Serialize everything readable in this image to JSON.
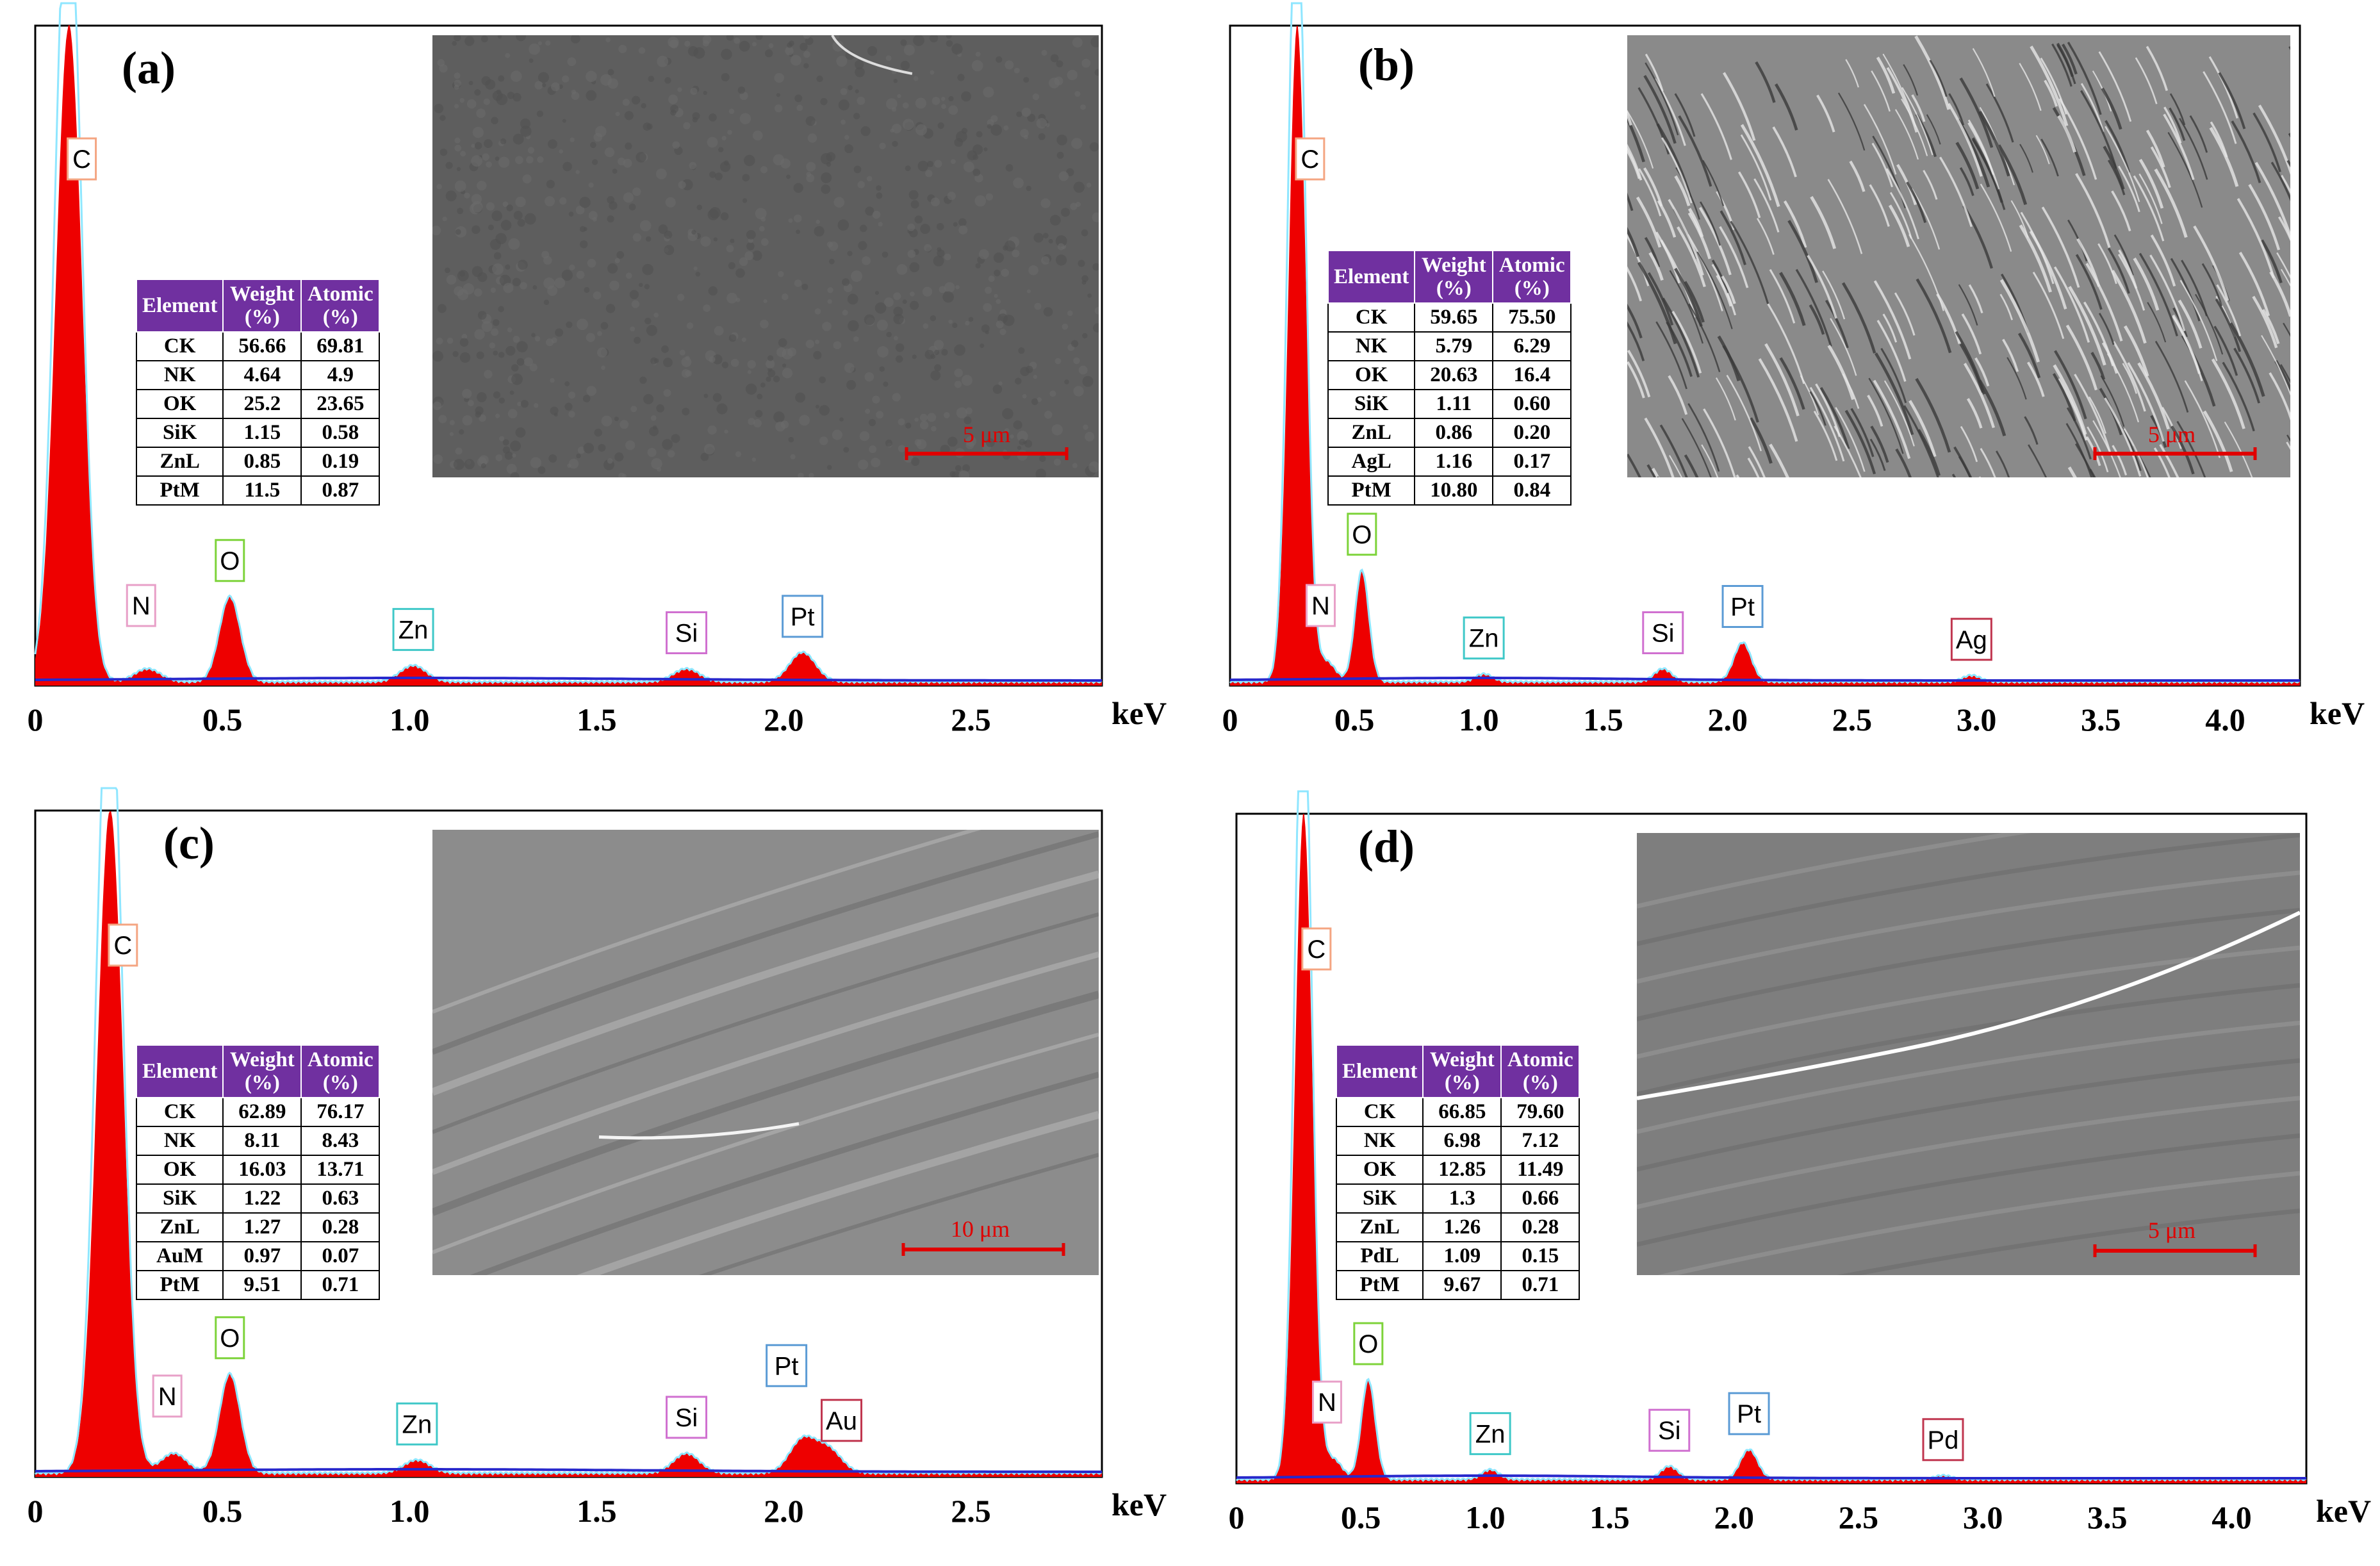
{
  "colors": {
    "spectrum_fill": "#ee0000",
    "spectrum_line": "#8fe6ff",
    "background_line": "#2828cc",
    "table_header": "#7030a0",
    "scalebar": "#e00000"
  },
  "chart_data": [
    {
      "type": "area",
      "panel_label": "(a)",
      "xlabel": "keV",
      "xlim": [
        0,
        2.85
      ],
      "xticks": [
        0,
        0.5,
        1.0,
        1.5,
        2.0,
        2.5
      ],
      "xtick_labels": [
        "0",
        "0.5",
        "1.0",
        "1.5",
        "2.0",
        "2.5"
      ],
      "grid": false,
      "peaks": [
        {
          "element": "C",
          "energy": 0.09,
          "rel_height": 1.0
        },
        {
          "element": "N",
          "energy": 0.3,
          "rel_height": 0.02
        },
        {
          "element": "O",
          "energy": 0.52,
          "rel_height": 0.13
        },
        {
          "element": "Zn",
          "energy": 1.01,
          "rel_height": 0.025
        },
        {
          "element": "Si",
          "energy": 1.74,
          "rel_height": 0.02
        },
        {
          "element": "Pt",
          "energy": 2.05,
          "rel_height": 0.045
        }
      ],
      "peak_labels": [
        {
          "text": "C",
          "color": "#f4a582"
        },
        {
          "text": "N",
          "color": "#e8a0c8"
        },
        {
          "text": "O",
          "color": "#7dd33a"
        },
        {
          "text": "Zn",
          "color": "#3fc8c8"
        },
        {
          "text": "Si",
          "color": "#d070d0"
        },
        {
          "text": "Pt",
          "color": "#5b9bd5"
        }
      ],
      "table": {
        "headers": [
          "Element",
          "Weight (%)",
          "Atomic (%)"
        ],
        "rows": [
          [
            "CK",
            "56.66",
            "69.81"
          ],
          [
            "NK",
            "4.64",
            "4.9"
          ],
          [
            "OK",
            "25.2",
            "23.65"
          ],
          [
            "SiK",
            "1.15",
            "0.58"
          ],
          [
            "ZnL",
            "0.85",
            "0.19"
          ],
          [
            "PtM",
            "11.5",
            "0.87"
          ]
        ]
      },
      "sem": {
        "texture": "smooth",
        "scalebar_label": "5 μm"
      }
    },
    {
      "type": "area",
      "panel_label": "(b)",
      "xlabel": "keV",
      "xlim": [
        0,
        4.3
      ],
      "xticks": [
        0,
        0.5,
        1.0,
        1.5,
        2.0,
        2.5,
        3.0,
        3.5,
        4.0
      ],
      "xtick_labels": [
        "0",
        "0.5",
        "1.0",
        "1.5",
        "2.0",
        "2.5",
        "3.0",
        "3.5",
        "4.0"
      ],
      "grid": false,
      "peaks": [
        {
          "element": "C",
          "energy": 0.27,
          "rel_height": 1.0
        },
        {
          "element": "N",
          "energy": 0.39,
          "rel_height": 0.03
        },
        {
          "element": "O",
          "energy": 0.53,
          "rel_height": 0.17
        },
        {
          "element": "Zn",
          "energy": 1.02,
          "rel_height": 0.012
        },
        {
          "element": "Si",
          "energy": 1.74,
          "rel_height": 0.02
        },
        {
          "element": "Pt",
          "energy": 2.06,
          "rel_height": 0.06
        },
        {
          "element": "Ag",
          "energy": 2.98,
          "rel_height": 0.01
        }
      ],
      "peak_labels": [
        {
          "text": "C",
          "color": "#f4a582"
        },
        {
          "text": "N",
          "color": "#e8a0c8"
        },
        {
          "text": "O",
          "color": "#7dd33a"
        },
        {
          "text": "Zn",
          "color": "#3fc8c8"
        },
        {
          "text": "Si",
          "color": "#d070d0"
        },
        {
          "text": "Pt",
          "color": "#5b9bd5"
        },
        {
          "text": "Ag",
          "color": "#c0364f"
        }
      ],
      "table": {
        "headers": [
          "Element",
          "Weight (%)",
          "Atomic (%)"
        ],
        "rows": [
          [
            "CK",
            "59.65",
            "75.50"
          ],
          [
            "NK",
            "5.79",
            "6.29"
          ],
          [
            "OK",
            "20.63",
            "16.4"
          ],
          [
            "SiK",
            "1.11",
            "0.60"
          ],
          [
            "ZnL",
            "0.86",
            "0.20"
          ],
          [
            "AgL",
            "1.16",
            "0.17"
          ],
          [
            "PtM",
            "10.80",
            "0.84"
          ]
        ]
      },
      "sem": {
        "texture": "ridged",
        "scalebar_label": "5 μm"
      }
    },
    {
      "type": "area",
      "panel_label": "(c)",
      "xlabel": "keV",
      "xlim": [
        0,
        2.85
      ],
      "xticks": [
        0,
        0.5,
        1.0,
        1.5,
        2.0,
        2.5
      ],
      "xtick_labels": [
        "0",
        "0.5",
        "1.0",
        "1.5",
        "2.0",
        "2.5"
      ],
      "grid": false,
      "peaks": [
        {
          "element": "C",
          "energy": 0.2,
          "rel_height": 1.0
        },
        {
          "element": "N",
          "energy": 0.37,
          "rel_height": 0.03
        },
        {
          "element": "O",
          "energy": 0.52,
          "rel_height": 0.15
        },
        {
          "element": "Zn",
          "energy": 1.02,
          "rel_height": 0.02
        },
        {
          "element": "Si",
          "energy": 1.74,
          "rel_height": 0.03
        },
        {
          "element": "Pt",
          "energy": 2.05,
          "rel_height": 0.05
        },
        {
          "element": "Au",
          "energy": 2.12,
          "rel_height": 0.035
        }
      ],
      "peak_labels": [
        {
          "text": "C",
          "color": "#f4a582"
        },
        {
          "text": "N",
          "color": "#e8a0c8"
        },
        {
          "text": "O",
          "color": "#7dd33a"
        },
        {
          "text": "Zn",
          "color": "#3fc8c8"
        },
        {
          "text": "Si",
          "color": "#d070d0"
        },
        {
          "text": "Pt",
          "color": "#5b9bd5"
        },
        {
          "text": "Au",
          "color": "#c0364f"
        }
      ],
      "table": {
        "headers": [
          "Element",
          "Weight (%)",
          "Atomic (%)"
        ],
        "rows": [
          [
            "CK",
            "62.89",
            "76.17"
          ],
          [
            "NK",
            "8.11",
            "8.43"
          ],
          [
            "OK",
            "16.03",
            "13.71"
          ],
          [
            "SiK",
            "1.22",
            "0.63"
          ],
          [
            "ZnL",
            "1.27",
            "0.28"
          ],
          [
            "AuM",
            "0.97",
            "0.07"
          ],
          [
            "PtM",
            "9.51",
            "0.71"
          ]
        ]
      },
      "sem": {
        "texture": "folds",
        "scalebar_label": "10 μm"
      }
    },
    {
      "type": "area",
      "panel_label": "(d)",
      "xlabel": "keV",
      "xlim": [
        0,
        4.3
      ],
      "xticks": [
        0,
        0.5,
        1.0,
        1.5,
        2.0,
        2.5,
        3.0,
        3.5,
        4.0
      ],
      "xtick_labels": [
        "0",
        "0.5",
        "1.0",
        "1.5",
        "2.0",
        "2.5",
        "3.0",
        "3.5",
        "4.0"
      ],
      "grid": false,
      "peaks": [
        {
          "element": "C",
          "energy": 0.27,
          "rel_height": 1.0
        },
        {
          "element": "N",
          "energy": 0.39,
          "rel_height": 0.03
        },
        {
          "element": "O",
          "energy": 0.53,
          "rel_height": 0.15
        },
        {
          "element": "Zn",
          "energy": 1.02,
          "rel_height": 0.015
        },
        {
          "element": "Si",
          "energy": 1.74,
          "rel_height": 0.02
        },
        {
          "element": "Pt",
          "energy": 2.06,
          "rel_height": 0.045
        },
        {
          "element": "Pd",
          "energy": 2.84,
          "rel_height": 0.006
        }
      ],
      "peak_labels": [
        {
          "text": "C",
          "color": "#f4a582"
        },
        {
          "text": "N",
          "color": "#e8a0c8"
        },
        {
          "text": "O",
          "color": "#7dd33a"
        },
        {
          "text": "Zn",
          "color": "#3fc8c8"
        },
        {
          "text": "Si",
          "color": "#d070d0"
        },
        {
          "text": "Pt",
          "color": "#5b9bd5"
        },
        {
          "text": "Pd",
          "color": "#c0364f"
        }
      ],
      "table": {
        "headers": [
          "Element",
          "Weight (%)",
          "Atomic (%)"
        ],
        "rows": [
          [
            "CK",
            "66.85",
            "79.60"
          ],
          [
            "NK",
            "6.98",
            "7.12"
          ],
          [
            "OK",
            "12.85",
            "11.49"
          ],
          [
            "SiK",
            "1.3",
            "0.66"
          ],
          [
            "ZnL",
            "1.26",
            "0.28"
          ],
          [
            "PdL",
            "1.09",
            "0.15"
          ],
          [
            "PtM",
            "9.67",
            "0.71"
          ]
        ]
      },
      "sem": {
        "texture": "crack",
        "scalebar_label": "5 μm"
      }
    }
  ]
}
